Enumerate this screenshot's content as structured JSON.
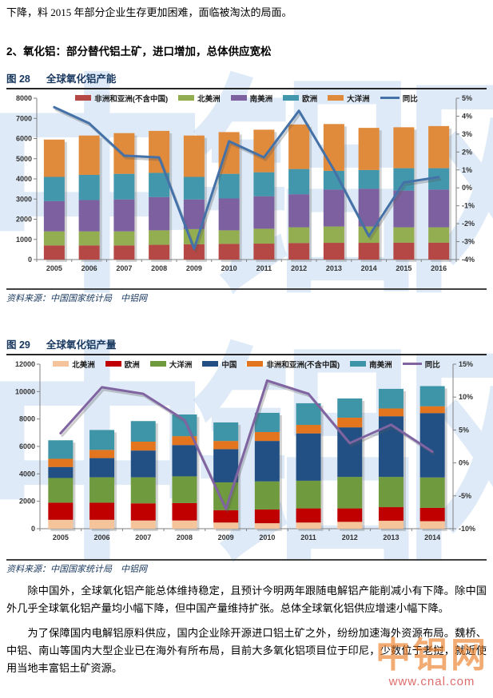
{
  "page": {
    "intro_text": "下降，料 2015 年部分企业生存更加困难，面临被淘汰的局面。",
    "section_heading": "2、氧化铝：部分替代铝土矿，进口增加，总体供应宽松",
    "paragraphs": [
      "除中国外，全球氧化铝产能总体维持稳定，且预计今明两年跟随电解铝产能削减小有下降。除中国外几乎全球氧化铝产量均小幅下降，但中国产量维持扩张。总体全球氧化铝供应增速小幅下降。",
      "为了保障国内电解铝原料供应，国内企业除开源进口铝土矿之外，纷纷加速海外资源布局。魏桥、中铝、南山等国内大型企业已在海外有所布局，目前大多氧化铝项目位于印尼，少数位于老挝，就近使用当地丰富铝土矿资源。"
    ],
    "watermarks": {
      "center": "中铝网",
      "corner_text": "中铝网",
      "corner_url": "www.cnal.com"
    }
  },
  "figures": [
    {
      "label": "图 28",
      "title": "全球氧化铝产能",
      "source": "资料来源：中国国家统计局　中铝网"
    },
    {
      "label": "图 29",
      "title": "全球氧化铝产量",
      "source": "资料来源：中国国家统计局　中铝网"
    }
  ],
  "chart_data": [
    {
      "type": "bar",
      "subtype": "stacked-bar-with-line",
      "title": "全球氧化铝产能",
      "categories": [
        "2005",
        "2006",
        "2007",
        "2008",
        "2009",
        "2010",
        "2011",
        "2012",
        "2013",
        "2014",
        "2015",
        "2016"
      ],
      "series": [
        {
          "name": "非洲和亚洲(不含中国)",
          "color": "#B54744",
          "values": [
            700,
            700,
            700,
            730,
            760,
            780,
            790,
            820,
            830,
            830,
            840,
            840
          ]
        },
        {
          "name": "北美洲",
          "color": "#93AE50",
          "values": [
            700,
            700,
            700,
            720,
            750,
            670,
            740,
            780,
            810,
            810,
            760,
            760
          ]
        },
        {
          "name": "南美洲",
          "color": "#7D60A0",
          "values": [
            1500,
            1550,
            1580,
            1650,
            1470,
            1580,
            1610,
            1640,
            1830,
            1870,
            1820,
            1870
          ]
        },
        {
          "name": "欧洲",
          "color": "#4397AD",
          "values": [
            1200,
            1250,
            1270,
            1200,
            1120,
            1220,
            1190,
            1250,
            930,
            930,
            1110,
            1060
          ]
        },
        {
          "name": "大洋洲",
          "color": "#E08A3C",
          "values": [
            1850,
            1950,
            2020,
            2080,
            2050,
            2070,
            2110,
            2210,
            2320,
            2090,
            2030,
            2090
          ]
        }
      ],
      "line": {
        "name": "同比",
        "color": "#4472A8",
        "values": [
          4.5,
          3.6,
          1.8,
          1.7,
          -3.4,
          2.6,
          1.7,
          4.3,
          1.0,
          -2.7,
          0.3,
          0.6
        ]
      },
      "left_axis": {
        "min": 0,
        "max": 8000,
        "step": 1000
      },
      "right_axis": {
        "min": -4,
        "max": 5,
        "step": 1,
        "suffix": "%"
      },
      "grid": false,
      "legend_position": "top"
    },
    {
      "type": "bar",
      "subtype": "stacked-bar-with-line",
      "title": "全球氧化铝产量",
      "categories": [
        "2005",
        "2006",
        "2007",
        "2008",
        "2009",
        "2010",
        "2011",
        "2012",
        "2013",
        "2014"
      ],
      "series": [
        {
          "name": "北美洲",
          "color": "#F6C49A",
          "values": [
            650,
            650,
            600,
            600,
            450,
            400,
            450,
            500,
            580,
            550
          ]
        },
        {
          "name": "欧洲",
          "color": "#C00000",
          "values": [
            1250,
            1250,
            1250,
            1270,
            900,
            1000,
            1030,
            980,
            990,
            970
          ]
        },
        {
          "name": "大洋洲",
          "color": "#6F9A3D",
          "values": [
            1800,
            1850,
            1900,
            1950,
            2030,
            2050,
            2020,
            2300,
            2210,
            2220
          ]
        },
        {
          "name": "中国",
          "color": "#235084",
          "values": [
            800,
            1400,
            1950,
            2280,
            2420,
            2950,
            3450,
            3610,
            4420,
            4690
          ]
        },
        {
          "name": "非洲和亚洲(不含中国)",
          "color": "#E2751D",
          "values": [
            600,
            600,
            650,
            650,
            600,
            650,
            620,
            710,
            570,
            500
          ]
        },
        {
          "name": "南美洲",
          "color": "#3E95A8",
          "values": [
            1350,
            1450,
            1500,
            1580,
            1350,
            1400,
            1580,
            1400,
            1430,
            1470
          ]
        }
      ],
      "line": {
        "name": "同比",
        "color": "#8064A2",
        "values": [
          4.5,
          11.5,
          10.5,
          6.5,
          -7.0,
          12.5,
          10.5,
          3.0,
          5.8,
          1.7
        ]
      },
      "left_axis": {
        "min": 0,
        "max": 12000,
        "step": 2000
      },
      "right_axis": {
        "min": -10,
        "max": 15,
        "step": 5,
        "suffix": "%"
      },
      "grid": false,
      "legend_position": "top"
    }
  ]
}
